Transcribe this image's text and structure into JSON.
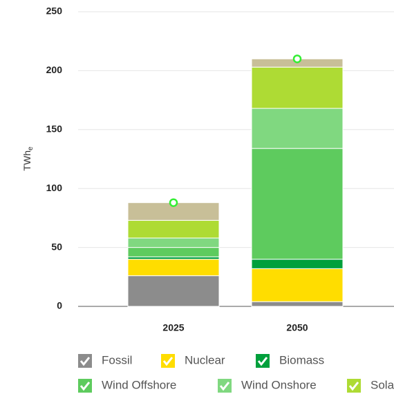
{
  "chart_data": {
    "type": "stacked_bar",
    "categories": [
      "2025",
      "2050"
    ],
    "ylabel": "TWh",
    "ylabel_sub": "e",
    "ylim": [
      0,
      250
    ],
    "yticks": [
      0,
      50,
      100,
      150,
      200,
      250
    ],
    "grid": true,
    "series": [
      {
        "name": "Fossil",
        "color": "#8c8c8c",
        "values": [
          26,
          4
        ]
      },
      {
        "name": "Nuclear",
        "color": "#ffdd00",
        "values": [
          14,
          28
        ]
      },
      {
        "name": "Biomass",
        "color": "#00a03c",
        "values": [
          2,
          8
        ]
      },
      {
        "name": "Wind Offshore",
        "color": "#5ecb5e",
        "values": [
          8,
          94
        ]
      },
      {
        "name": "Wind Onshore",
        "color": "#80d880",
        "values": [
          8,
          34
        ]
      },
      {
        "name": "Sola",
        "color": "#aedb34",
        "values": [
          15,
          35
        ]
      },
      {
        "color": "#c8bf98",
        "values": [
          15,
          7
        ]
      }
    ],
    "total": {
      "color": "#33ee33",
      "values": [
        88,
        210
      ]
    }
  }
}
